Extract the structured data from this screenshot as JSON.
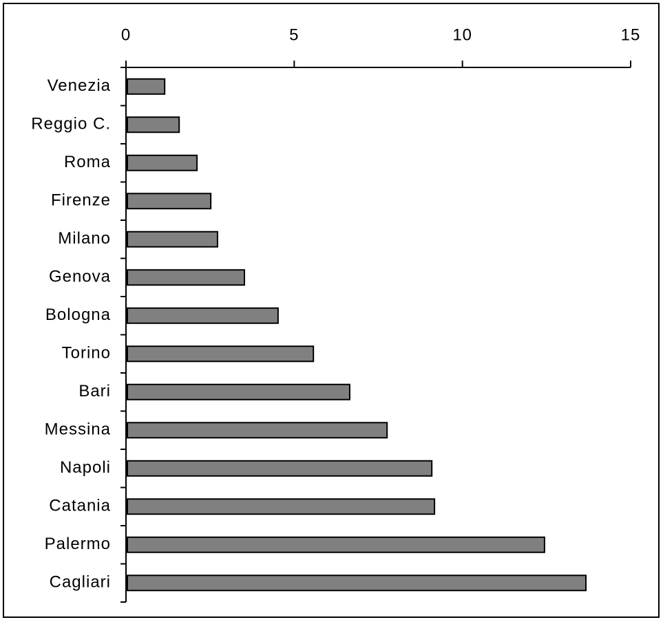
{
  "chart_data": {
    "type": "bar",
    "orientation": "horizontal",
    "categories": [
      "Venezia",
      "Reggio C.",
      "Roma",
      "Firenze",
      "Milano",
      "Genova",
      "Bologna",
      "Torino",
      "Bari",
      "Messina",
      "Napoli",
      "Catania",
      "Palermo",
      "Cagliari"
    ],
    "values": [
      1.15,
      1.58,
      2.11,
      2.52,
      2.72,
      3.52,
      4.52,
      5.57,
      6.65,
      7.76,
      9.09,
      9.17,
      12.44,
      13.67
    ],
    "color": "#808080",
    "xlim": [
      0,
      15
    ],
    "xticks": [
      0,
      5,
      10,
      15
    ],
    "grid": false
  }
}
